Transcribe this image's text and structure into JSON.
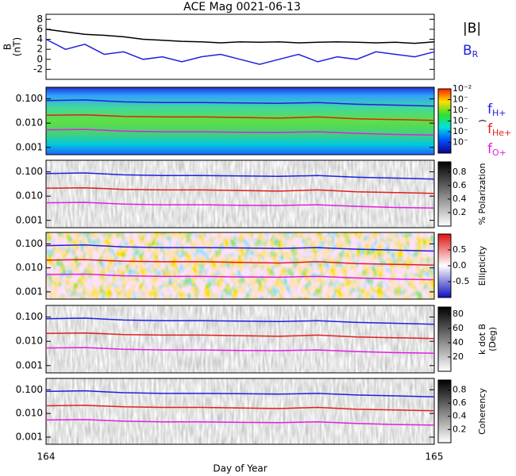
{
  "chart_data": [
    {
      "type": "line",
      "title": "ACE Mag 0021-06-13",
      "ylabel": [
        "B",
        "(nT)"
      ],
      "xlim": [
        164,
        165
      ],
      "xticks": [
        164,
        165
      ],
      "ylim": [
        -4,
        9
      ],
      "yticks": [
        -2,
        0,
        2,
        4,
        6,
        8
      ],
      "x": [
        164.0,
        164.05,
        164.1,
        164.15,
        164.2,
        164.25,
        164.3,
        164.35,
        164.4,
        164.45,
        164.5,
        164.55,
        164.6,
        164.65,
        164.7,
        164.75,
        164.8,
        164.85,
        164.9,
        164.95,
        165.0
      ],
      "series": [
        {
          "name": "|B|",
          "color": "#000000",
          "values": [
            6,
            5.5,
            5,
            4.8,
            4.5,
            4,
            3.8,
            3.6,
            3.5,
            3.3,
            3.5,
            3.4,
            3.5,
            3.3,
            3.4,
            3.5,
            3.4,
            3.3,
            3.4,
            3.2,
            3.5
          ]
        },
        {
          "name": "B",
          "sub": "R",
          "color": "#1f1fe0",
          "values": [
            4,
            2,
            3,
            1,
            1.5,
            0,
            0.5,
            -0.5,
            0.5,
            1,
            0,
            -1,
            0,
            1,
            -0.5,
            0.5,
            0,
            1.5,
            1,
            0.5,
            1.5
          ]
        }
      ]
    },
    {
      "type": "spectrogram",
      "colormap": "rainbow",
      "legend": true,
      "yscale": "log",
      "xlim": [
        164,
        165
      ],
      "ylim": [
        0.0005,
        0.3
      ],
      "yticks": [
        {
          "value": 0.001,
          "label": "0.001"
        },
        {
          "value": 0.01,
          "label": "0.010"
        },
        {
          "value": 0.1,
          "label": "0.100"
        }
      ],
      "x": [
        164.0,
        164.1,
        164.2,
        164.3,
        164.4,
        164.5,
        164.6,
        164.7,
        164.8,
        164.9,
        165.0
      ],
      "series": [
        {
          "name": "f",
          "sub": "H+",
          "color": "#1f1fe0",
          "values": [
            0.085,
            0.09,
            0.075,
            0.07,
            0.07,
            0.068,
            0.065,
            0.07,
            0.06,
            0.055,
            0.05
          ]
        },
        {
          "name": "f",
          "sub": "He+",
          "color": "#e01f1f",
          "values": [
            0.021,
            0.022,
            0.019,
            0.018,
            0.018,
            0.017,
            0.016,
            0.018,
            0.015,
            0.014,
            0.013
          ]
        },
        {
          "name": "f",
          "sub": "O+",
          "color": "#e01fe0",
          "values": [
            0.0053,
            0.0055,
            0.0047,
            0.0044,
            0.0044,
            0.0042,
            0.0041,
            0.0044,
            0.0038,
            0.0034,
            0.0032
          ]
        }
      ],
      "colorbar": {
        "label": [
          ")"
        ],
        "lim": [
          -8,
          -2
        ],
        "ticks": [
          {
            "value": -2,
            "label": "10⁻²"
          },
          {
            "value": -3,
            "label": "10⁻"
          },
          {
            "value": -4,
            "label": "10⁻"
          },
          {
            "value": -5,
            "label": "10⁻"
          },
          {
            "value": -6,
            "label": "10⁻"
          },
          {
            "value": -7,
            "label": "10⁻"
          }
        ]
      }
    },
    {
      "type": "spectrogram",
      "colormap": "gray",
      "yscale": "log",
      "xlim": [
        164,
        165
      ],
      "ylim": [
        0.0005,
        0.3
      ],
      "yticks": [
        {
          "value": 0.001,
          "label": "0.001"
        },
        {
          "value": 0.01,
          "label": "0.010"
        },
        {
          "value": 0.1,
          "label": "0.100"
        }
      ],
      "x": [
        164.0,
        164.1,
        164.2,
        164.3,
        164.4,
        164.5,
        164.6,
        164.7,
        164.8,
        164.9,
        165.0
      ],
      "series": [
        {
          "color": "#1f1fe0",
          "values": [
            0.085,
            0.09,
            0.075,
            0.07,
            0.07,
            0.068,
            0.065,
            0.07,
            0.06,
            0.055,
            0.05
          ]
        },
        {
          "color": "#e01f1f",
          "values": [
            0.021,
            0.022,
            0.019,
            0.018,
            0.018,
            0.017,
            0.016,
            0.018,
            0.015,
            0.014,
            0.013
          ]
        },
        {
          "color": "#e01fe0",
          "values": [
            0.0053,
            0.0055,
            0.0047,
            0.0044,
            0.0044,
            0.0042,
            0.0041,
            0.0044,
            0.0038,
            0.0034,
            0.0032
          ]
        }
      ],
      "colorbar": {
        "label": [
          "% Polarization"
        ],
        "lim": [
          0,
          0.95
        ],
        "ticks": [
          0.2,
          0.4,
          0.6,
          0.8
        ]
      }
    },
    {
      "type": "spectrogram",
      "colormap": "bwr",
      "yscale": "log",
      "xlim": [
        164,
        165
      ],
      "ylim": [
        0.0005,
        0.3
      ],
      "yticks": [
        {
          "value": 0.001,
          "label": "0.001"
        },
        {
          "value": 0.01,
          "label": "0.010"
        },
        {
          "value": 0.1,
          "label": "0.100"
        }
      ],
      "x": [
        164.0,
        164.1,
        164.2,
        164.3,
        164.4,
        164.5,
        164.6,
        164.7,
        164.8,
        164.9,
        165.0
      ],
      "series": [
        {
          "color": "#1f1fe0",
          "values": [
            0.085,
            0.09,
            0.075,
            0.07,
            0.07,
            0.068,
            0.065,
            0.07,
            0.06,
            0.055,
            0.05
          ]
        },
        {
          "color": "#e01f1f",
          "values": [
            0.021,
            0.022,
            0.019,
            0.018,
            0.018,
            0.017,
            0.016,
            0.018,
            0.015,
            0.014,
            0.013
          ]
        },
        {
          "color": "#e01fe0",
          "values": [
            0.0053,
            0.0055,
            0.0047,
            0.0044,
            0.0044,
            0.0042,
            0.0041,
            0.0044,
            0.0038,
            0.0034,
            0.0032
          ]
        }
      ],
      "colorbar": {
        "label": [
          "Ellipticity"
        ],
        "lim": [
          -1,
          1
        ],
        "ticks": [
          -0.5,
          {
            "value": 0,
            "label": "0.0"
          },
          0.5
        ]
      }
    },
    {
      "type": "spectrogram",
      "colormap": "gray",
      "yscale": "log",
      "xlim": [
        164,
        165
      ],
      "ylim": [
        0.0005,
        0.3
      ],
      "yticks": [
        {
          "value": 0.001,
          "label": "0.001"
        },
        {
          "value": 0.01,
          "label": "0.010"
        },
        {
          "value": 0.1,
          "label": "0.100"
        }
      ],
      "x": [
        164.0,
        164.1,
        164.2,
        164.3,
        164.4,
        164.5,
        164.6,
        164.7,
        164.8,
        164.9,
        165.0
      ],
      "series": [
        {
          "color": "#1f1fe0",
          "values": [
            0.085,
            0.09,
            0.075,
            0.07,
            0.07,
            0.068,
            0.065,
            0.07,
            0.06,
            0.055,
            0.05
          ]
        },
        {
          "color": "#e01f1f",
          "values": [
            0.021,
            0.022,
            0.019,
            0.018,
            0.018,
            0.017,
            0.016,
            0.018,
            0.015,
            0.014,
            0.013
          ]
        },
        {
          "color": "#e01fe0",
          "values": [
            0.0053,
            0.0055,
            0.0047,
            0.0044,
            0.0044,
            0.0042,
            0.0041,
            0.0044,
            0.0038,
            0.0034,
            0.0032
          ]
        }
      ],
      "colorbar": {
        "label": [
          "k dot B",
          "(Deg)"
        ],
        "lim": [
          0,
          90
        ],
        "ticks": [
          20,
          40,
          60,
          80
        ]
      }
    },
    {
      "type": "spectrogram",
      "colormap": "gray",
      "yscale": "log",
      "xlim": [
        164,
        165
      ],
      "ylim": [
        0.0005,
        0.3
      ],
      "xticks": [
        164,
        165
      ],
      "xlabel": "Day of Year",
      "yticks": [
        {
          "value": 0.001,
          "label": "0.001"
        },
        {
          "value": 0.01,
          "label": "0.010"
        },
        {
          "value": 0.1,
          "label": "0.100"
        }
      ],
      "x": [
        164.0,
        164.1,
        164.2,
        164.3,
        164.4,
        164.5,
        164.6,
        164.7,
        164.8,
        164.9,
        165.0
      ],
      "series": [
        {
          "color": "#1f1fe0",
          "values": [
            0.085,
            0.09,
            0.075,
            0.07,
            0.07,
            0.068,
            0.065,
            0.07,
            0.06,
            0.055,
            0.05
          ]
        },
        {
          "color": "#e01f1f",
          "values": [
            0.021,
            0.022,
            0.019,
            0.018,
            0.018,
            0.017,
            0.016,
            0.018,
            0.015,
            0.014,
            0.013
          ]
        },
        {
          "color": "#e01fe0",
          "values": [
            0.0053,
            0.0055,
            0.0047,
            0.0044,
            0.0044,
            0.0042,
            0.0041,
            0.0044,
            0.0038,
            0.0034,
            0.0032
          ]
        }
      ],
      "colorbar": {
        "label": [
          "Coherency"
        ],
        "lim": [
          0,
          0.95
        ],
        "ticks": [
          0.2,
          0.4,
          0.6,
          0.8
        ]
      }
    }
  ]
}
